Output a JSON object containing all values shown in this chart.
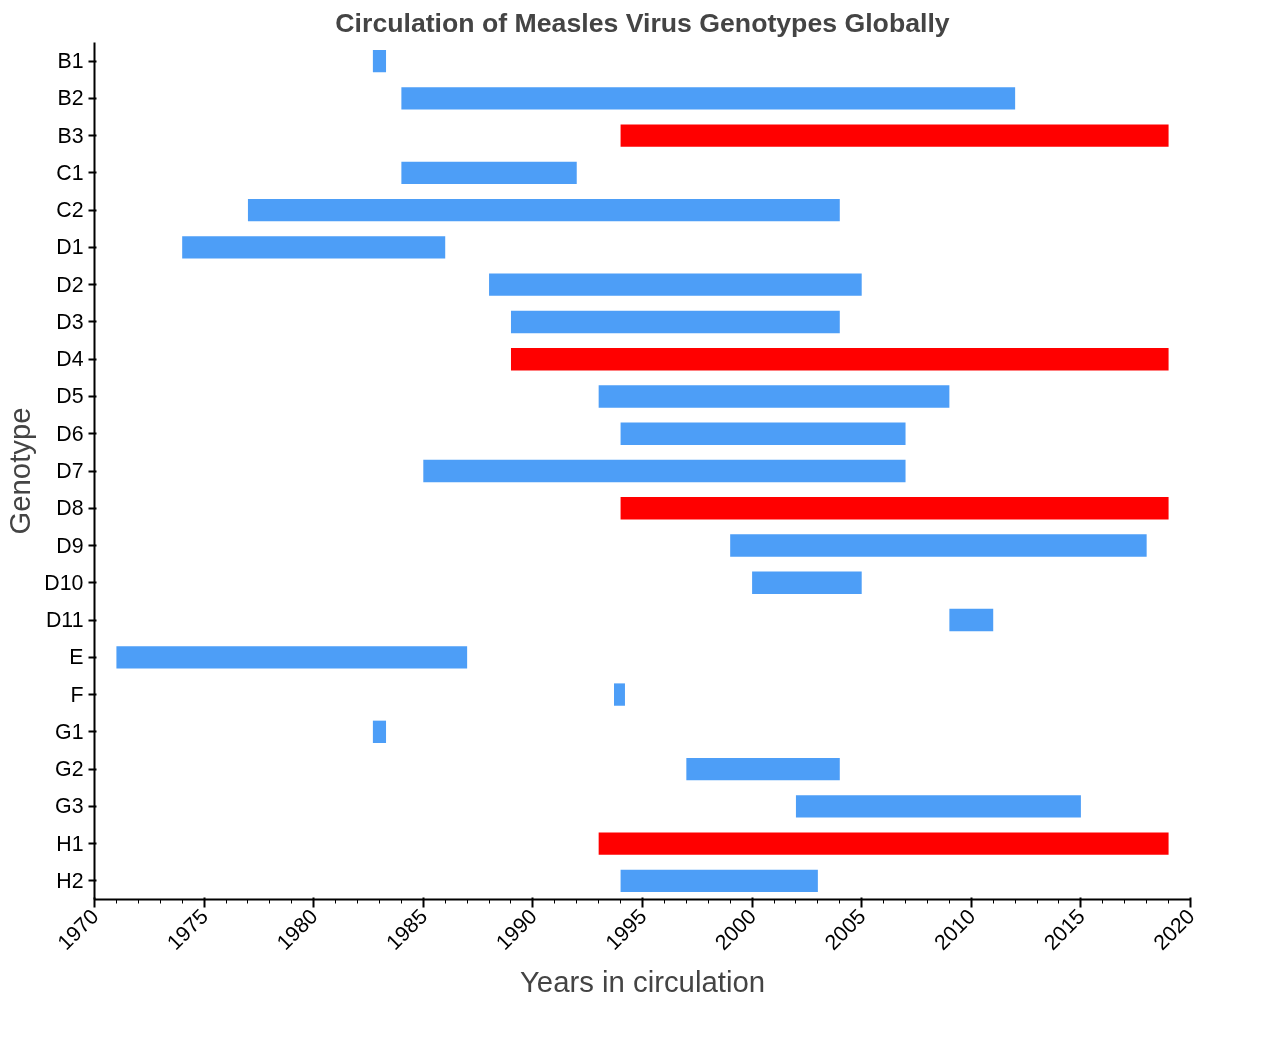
{
  "chart_data": {
    "type": "bar",
    "orientation": "horizontal",
    "title": "Circulation of Measles Virus Genotypes Globally",
    "xlabel": "Years in circulation",
    "ylabel": "Genotype",
    "categories": [
      "B1",
      "B2",
      "B3",
      "C1",
      "C2",
      "D1",
      "D2",
      "D3",
      "D4",
      "D5",
      "D6",
      "D7",
      "D8",
      "D9",
      "D10",
      "D11",
      "E",
      "F",
      "G1",
      "G2",
      "G3",
      "H1",
      "H2"
    ],
    "base": [
      1982.7,
      1984,
      1994,
      1984,
      1977,
      1974,
      1988,
      1989,
      1989,
      1993,
      1994,
      1985,
      1994,
      1999,
      2000,
      2009,
      1971,
      1993.7,
      1982.7,
      1997,
      2002,
      1993,
      1994
    ],
    "values": [
      0.6,
      28,
      25,
      8,
      27,
      12,
      17,
      15,
      30,
      16,
      13,
      22,
      25,
      19,
      5,
      2,
      16,
      0.5,
      0.6,
      7,
      13,
      26,
      9
    ],
    "colors": [
      "#4d9ef7",
      "#4d9ef7",
      "#ff0000",
      "#4d9ef7",
      "#4d9ef7",
      "#4d9ef7",
      "#4d9ef7",
      "#4d9ef7",
      "#ff0000",
      "#4d9ef7",
      "#4d9ef7",
      "#4d9ef7",
      "#ff0000",
      "#4d9ef7",
      "#4d9ef7",
      "#4d9ef7",
      "#4d9ef7",
      "#4d9ef7",
      "#4d9ef7",
      "#4d9ef7",
      "#4d9ef7",
      "#ff0000",
      "#4d9ef7"
    ],
    "xlim": [
      1970,
      2020
    ],
    "xticks": [
      1970,
      1975,
      1980,
      1985,
      1990,
      1995,
      2000,
      2005,
      2010,
      2015,
      2020
    ],
    "grid": false
  }
}
